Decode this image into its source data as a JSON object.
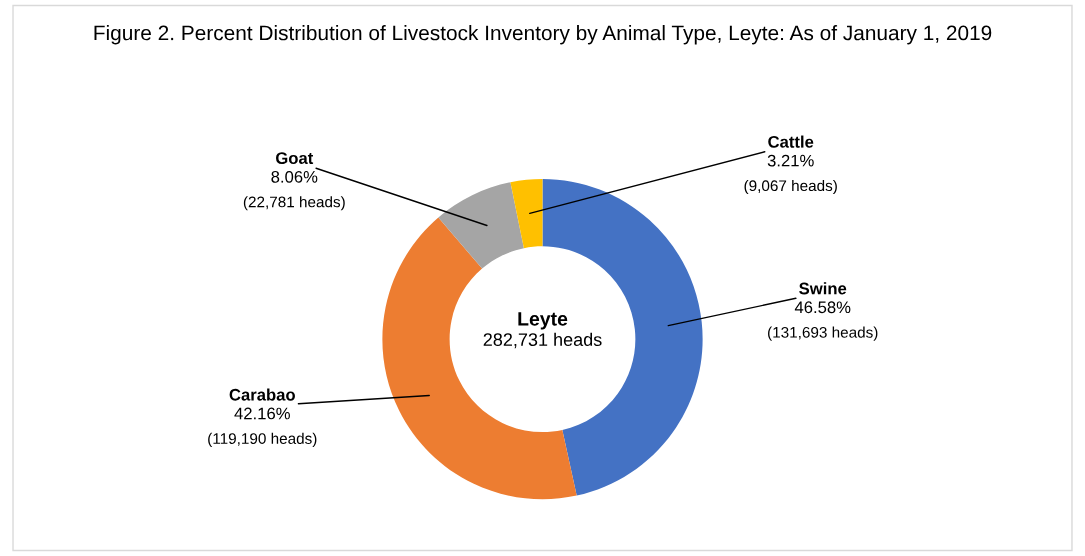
{
  "chart_data": {
    "type": "donut",
    "title": "Figure 2. Percent Distribution of Livestock Inventory by Animal Type, Leyte: As of January 1, 2019",
    "categories": [
      "Swine",
      "Carabao",
      "Goat",
      "Cattle"
    ],
    "values": [
      46.58,
      42.16,
      8.06,
      3.21
    ],
    "colors": [
      "#4472c4",
      "#ed7d31",
      "#a5a5a5",
      "#ffc000"
    ],
    "value_labels": [
      "46.58%",
      "42.16%",
      "8.06%",
      "3.21%"
    ],
    "annotations": [
      {
        "text": "(131,693 heads)",
        "x": "Swine"
      },
      {
        "text": "(119,190 heads)",
        "x": "Carabao"
      },
      {
        "text": "(22,781 heads)",
        "x": "Goat"
      },
      {
        "text": "(9,067 heads)",
        "x": "Cattle"
      },
      "Leyte",
      "282,731 heads"
    ],
    "legend": false
  }
}
